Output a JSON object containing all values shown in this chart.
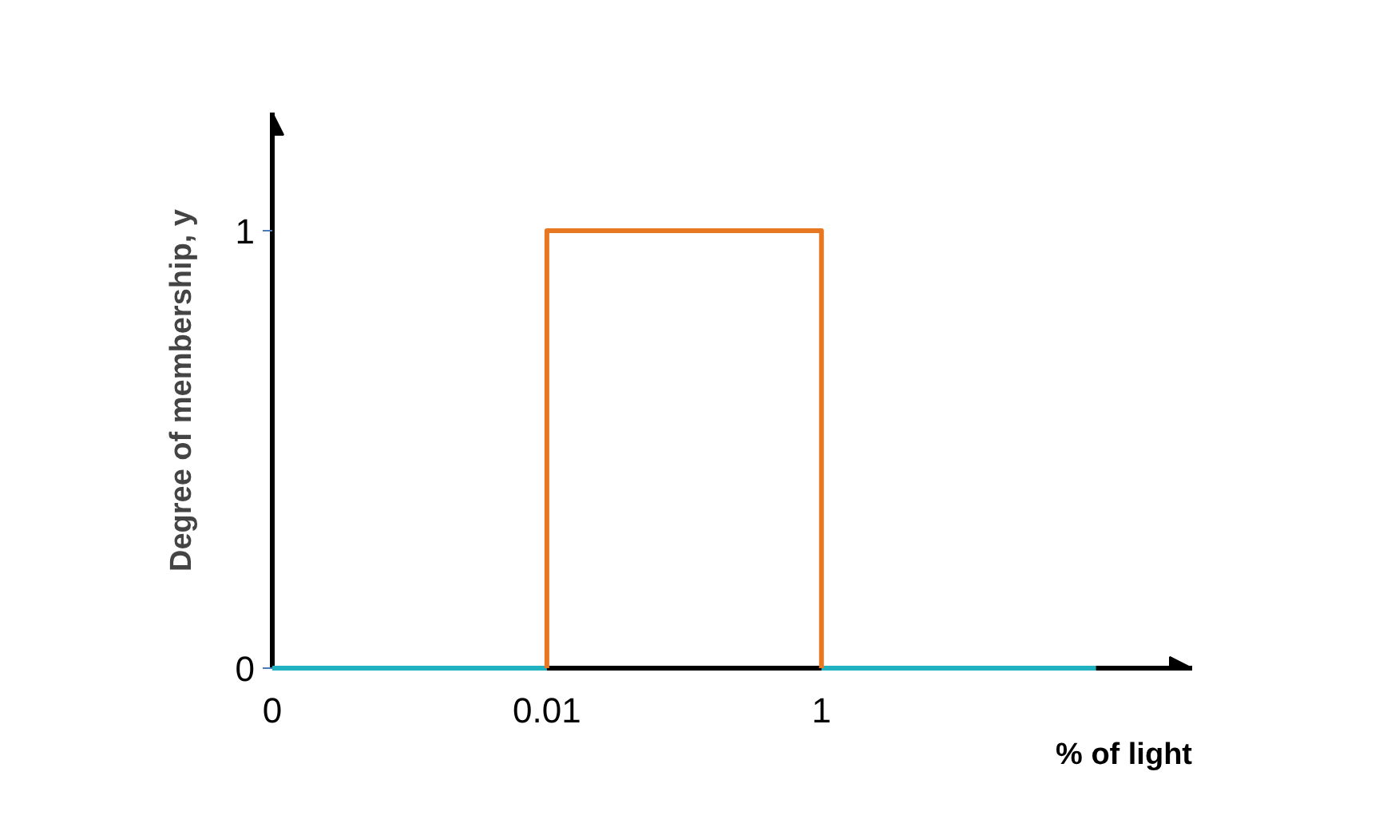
{
  "chart_data": {
    "type": "line",
    "xlabel": "% of light",
    "ylabel": "Degree of membership, y",
    "categories": [
      "0",
      "0.01",
      "1",
      null
    ],
    "ylim": [
      0,
      1.27
    ],
    "yticks": [
      0,
      1
    ],
    "grid": false,
    "series": [
      {
        "color": "#20b2c0",
        "values": [
          0,
          0,
          null,
          null
        ]
      },
      {
        "color": "#20b2c0",
        "values": [
          null,
          null,
          0,
          0
        ]
      },
      {
        "color": "#e87722",
        "x": [
          "0.01",
          "0.01",
          "1",
          "1"
        ],
        "values": [
          0,
          1,
          1,
          0
        ]
      }
    ]
  }
}
